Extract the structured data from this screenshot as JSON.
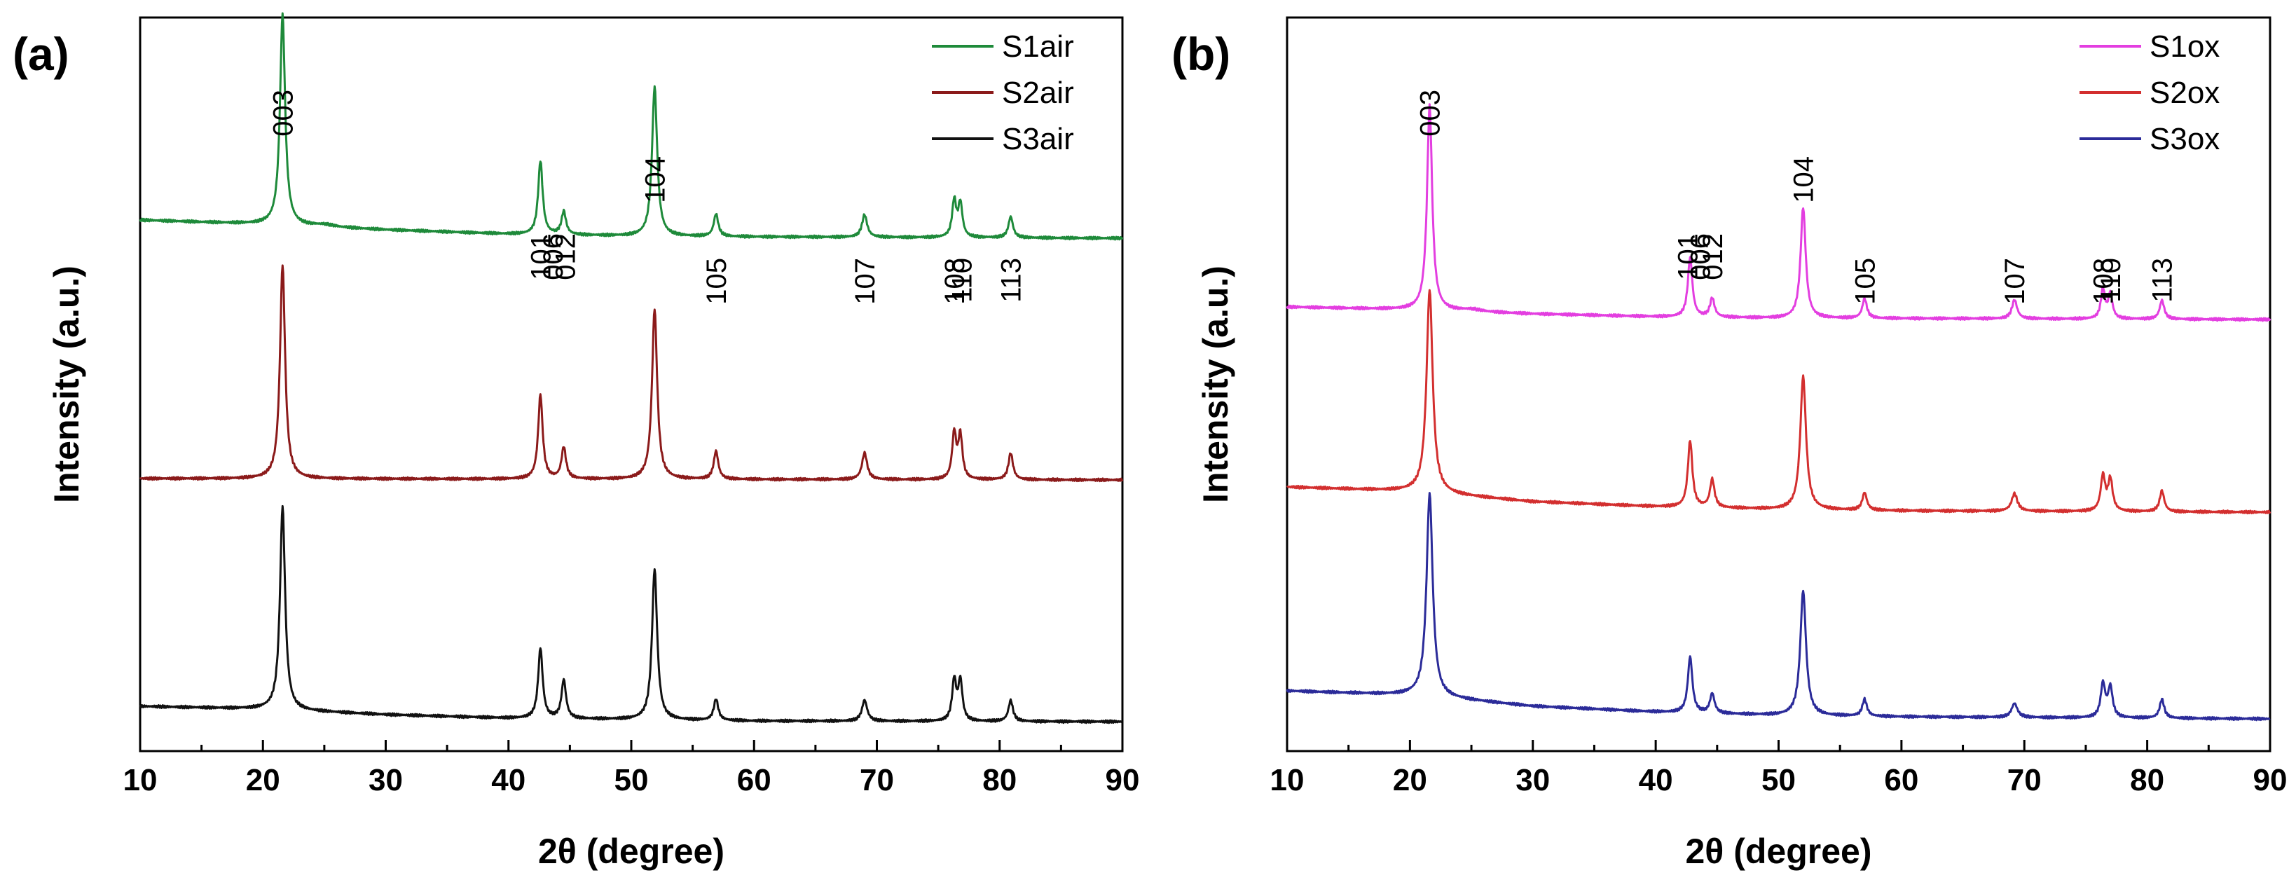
{
  "chart_data": [
    {
      "type": "line",
      "panel_label": "(a)",
      "xlabel": "2θ (degree)",
      "ylabel": "Intensity (a.u.)",
      "xlim": [
        10,
        90
      ],
      "x_ticks": [
        10,
        20,
        30,
        40,
        50,
        60,
        70,
        80,
        90
      ],
      "x_tick_labels": [
        "10",
        "20",
        "30",
        "40",
        "50",
        "60",
        "70",
        "80",
        "90"
      ],
      "y_ticks_shown": false,
      "legend_position": "top-right",
      "peak_labels": [
        {
          "label": "003",
          "x": 21.6
        },
        {
          "label": "101",
          "x": 42.6
        },
        {
          "label": "006",
          "x": 43.6
        },
        {
          "label": "012",
          "x": 44.6
        },
        {
          "label": "104",
          "x": 51.9
        },
        {
          "label": "105",
          "x": 56.9
        },
        {
          "label": "107",
          "x": 69.0
        },
        {
          "label": "108",
          "x": 76.3
        },
        {
          "label": "110",
          "x": 76.9
        },
        {
          "label": "113",
          "x": 80.9
        }
      ],
      "series": [
        {
          "name": "S1air",
          "color": "#1e8a3a",
          "offset": 690,
          "baseline": [
            [
              10,
              26
            ],
            [
              20,
              20
            ],
            [
              30,
              12
            ],
            [
              40,
              6
            ],
            [
              50,
              3
            ],
            [
              60,
              2
            ],
            [
              90,
              0
            ]
          ],
          "peaks": [
            [
              21.6,
              300,
              0.25
            ],
            [
              25.0,
              3,
              1.0
            ],
            [
              42.6,
              105,
              0.22
            ],
            [
              44.5,
              33,
              0.22
            ],
            [
              51.9,
              213,
              0.25
            ],
            [
              56.9,
              32,
              0.22
            ],
            [
              69.0,
              32,
              0.25
            ],
            [
              76.3,
              52,
              0.2
            ],
            [
              76.8,
              48,
              0.2
            ],
            [
              80.9,
              30,
              0.22
            ]
          ]
        },
        {
          "name": "S2air",
          "color": "#8b1a1a",
          "offset": 345,
          "baseline": [
            [
              10,
              2
            ],
            [
              90,
              0
            ]
          ],
          "peaks": [
            [
              21.6,
              305,
              0.25
            ],
            [
              42.6,
              120,
              0.22
            ],
            [
              44.5,
              45,
              0.22
            ],
            [
              51.9,
              243,
              0.25
            ],
            [
              56.9,
              40,
              0.22
            ],
            [
              69.0,
              38,
              0.25
            ],
            [
              76.3,
              65,
              0.2
            ],
            [
              76.8,
              62,
              0.2
            ],
            [
              80.9,
              38,
              0.22
            ]
          ]
        },
        {
          "name": "S3air",
          "color": "#111111",
          "offset": 0,
          "baseline": [
            [
              10,
              22
            ],
            [
              20,
              18
            ],
            [
              30,
              10
            ],
            [
              40,
              5
            ],
            [
              50,
              3
            ],
            [
              60,
              1
            ],
            [
              90,
              0
            ]
          ],
          "peaks": [
            [
              21.6,
              290,
              0.25
            ],
            [
              42.6,
              100,
              0.22
            ],
            [
              44.5,
              55,
              0.22
            ],
            [
              51.9,
              215,
              0.25
            ],
            [
              56.9,
              30,
              0.22
            ],
            [
              69.0,
              30,
              0.25
            ],
            [
              76.3,
              58,
              0.2
            ],
            [
              76.8,
              57,
              0.2
            ],
            [
              80.9,
              30,
              0.22
            ]
          ]
        }
      ]
    },
    {
      "type": "line",
      "panel_label": "(b)",
      "xlabel": "2θ (degree)",
      "ylabel": "Intensity (a.u.)",
      "xlim": [
        10,
        90
      ],
      "x_ticks": [
        10,
        20,
        30,
        40,
        50,
        60,
        70,
        80,
        90
      ],
      "x_tick_labels": [
        "10",
        "20",
        "30",
        "40",
        "50",
        "60",
        "70",
        "80",
        "90"
      ],
      "y_ticks_shown": false,
      "legend_position": "top-right",
      "peak_labels": [
        {
          "label": "003",
          "x": 21.6
        },
        {
          "label": "101",
          "x": 42.6
        },
        {
          "label": "006",
          "x": 43.6
        },
        {
          "label": "012",
          "x": 44.6
        },
        {
          "label": "104",
          "x": 52.0
        },
        {
          "label": "105",
          "x": 57.0
        },
        {
          "label": "107",
          "x": 69.2
        },
        {
          "label": "108",
          "x": 76.4
        },
        {
          "label": "110",
          "x": 77.0
        },
        {
          "label": "113",
          "x": 81.2
        }
      ],
      "series": [
        {
          "name": "S1ox",
          "color": "#e33ee0",
          "offset": 570,
          "baseline": [
            [
              10,
              18
            ],
            [
              20,
              14
            ],
            [
              30,
              8
            ],
            [
              40,
              4
            ],
            [
              50,
              2
            ],
            [
              90,
              0
            ]
          ],
          "peaks": [
            [
              21.6,
              292,
              0.25
            ],
            [
              25.0,
              3,
              1.0
            ],
            [
              42.8,
              85,
              0.22
            ],
            [
              44.6,
              27,
              0.22
            ],
            [
              52.0,
              158,
              0.25
            ],
            [
              57.0,
              28,
              0.22
            ],
            [
              69.2,
              27,
              0.25
            ],
            [
              76.4,
              42,
              0.2
            ],
            [
              77.0,
              36,
              0.2
            ],
            [
              81.2,
              27,
              0.22
            ]
          ]
        },
        {
          "name": "S2ox",
          "color": "#d32f2f",
          "offset": 295,
          "baseline": [
            [
              10,
              36
            ],
            [
              20,
              30
            ],
            [
              30,
              15
            ],
            [
              40,
              8
            ],
            [
              50,
              4
            ],
            [
              60,
              2
            ],
            [
              90,
              0
            ]
          ],
          "peaks": [
            [
              21.6,
              290,
              0.3
            ],
            [
              42.8,
              95,
              0.22
            ],
            [
              44.6,
              40,
              0.22
            ],
            [
              52.0,
              190,
              0.28
            ],
            [
              57.0,
              25,
              0.22
            ],
            [
              69.2,
              25,
              0.28
            ],
            [
              76.4,
              50,
              0.22
            ],
            [
              77.0,
              45,
              0.22
            ],
            [
              81.2,
              30,
              0.22
            ]
          ]
        },
        {
          "name": "S3ox",
          "color": "#2b2b99",
          "offset": 0,
          "baseline": [
            [
              10,
              40
            ],
            [
              20,
              34
            ],
            [
              24,
              28
            ],
            [
              30,
              18
            ],
            [
              40,
              10
            ],
            [
              50,
              5
            ],
            [
              60,
              3
            ],
            [
              90,
              0
            ]
          ],
          "peaks": [
            [
              21.6,
              290,
              0.3
            ],
            [
              42.8,
              80,
              0.22
            ],
            [
              44.6,
              28,
              0.22
            ],
            [
              52.0,
              178,
              0.28
            ],
            [
              57.0,
              24,
              0.22
            ],
            [
              69.2,
              20,
              0.28
            ],
            [
              76.4,
              48,
              0.22
            ],
            [
              77.0,
              43,
              0.22
            ],
            [
              81.2,
              27,
              0.22
            ]
          ]
        }
      ]
    }
  ]
}
